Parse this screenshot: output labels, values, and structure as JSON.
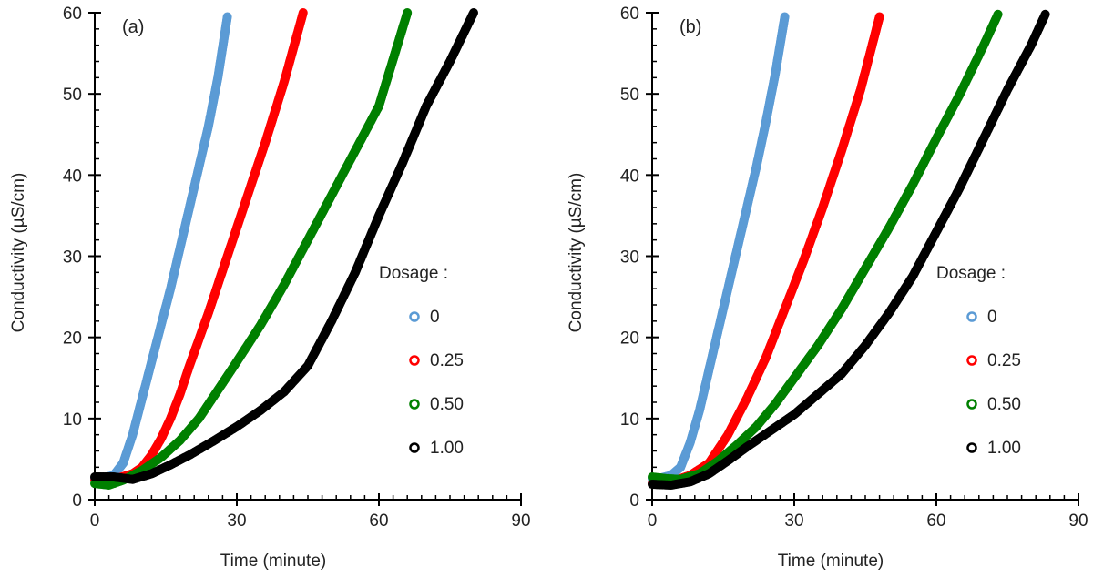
{
  "chart_data": [
    {
      "type": "scatter",
      "panel_label": "(a)",
      "xlabel": "Time (minute)",
      "ylabel": "Conductivity (µS/cm)",
      "xlim": [
        0,
        90
      ],
      "ylim": [
        0,
        60
      ],
      "xticks": [
        0,
        30,
        60,
        90
      ],
      "yticks": [
        0,
        10,
        20,
        30,
        40,
        50,
        60
      ],
      "grid": false,
      "legend": {
        "title": "Dosage :",
        "position": "right"
      },
      "series": [
        {
          "name": "0",
          "color": "#5b9bd5",
          "x": [
            0,
            2,
            4,
            6,
            8,
            10,
            12,
            14,
            16,
            18,
            20,
            22,
            24,
            26,
            28
          ],
          "y": [
            2.6,
            2.7,
            3.0,
            4.5,
            8.0,
            12.5,
            17.0,
            21.5,
            26.0,
            31.0,
            36.0,
            41.0,
            46.0,
            52.0,
            59.5
          ]
        },
        {
          "name": "0.25",
          "color": "#ff0000",
          "x": [
            0,
            4,
            8,
            10,
            12,
            14,
            16,
            18,
            20,
            24,
            28,
            32,
            36,
            40,
            44
          ],
          "y": [
            2.4,
            2.5,
            3.2,
            4.0,
            5.5,
            7.5,
            10.0,
            13.0,
            16.5,
            23.0,
            30.0,
            37.0,
            44.0,
            51.5,
            60.0
          ]
        },
        {
          "name": "0.50",
          "color": "#008000",
          "x": [
            0,
            3,
            6,
            10,
            14,
            18,
            22,
            26,
            30,
            35,
            40,
            45,
            50,
            55,
            60,
            66
          ],
          "y": [
            2.0,
            1.8,
            2.4,
            3.6,
            5.2,
            7.3,
            10.0,
            13.5,
            17.0,
            21.5,
            26.5,
            32.0,
            37.5,
            43.0,
            48.5,
            60.0
          ]
        },
        {
          "name": "1.00",
          "color": "#000000",
          "x": [
            0,
            4,
            8,
            12,
            16,
            20,
            25,
            30,
            35,
            40,
            45,
            50,
            55,
            60,
            65,
            70,
            75,
            80
          ],
          "y": [
            2.8,
            2.8,
            2.5,
            3.2,
            4.3,
            5.5,
            7.2,
            9.0,
            11.0,
            13.3,
            16.5,
            22.0,
            28.0,
            35.0,
            41.5,
            48.5,
            54.0,
            60.0
          ]
        }
      ]
    },
    {
      "type": "scatter",
      "panel_label": "(b)",
      "xlabel": "Time (minute)",
      "ylabel": "Conductivity (µS/cm)",
      "xlim": [
        0,
        90
      ],
      "ylim": [
        0,
        60
      ],
      "xticks": [
        0,
        30,
        60,
        90
      ],
      "yticks": [
        0,
        10,
        20,
        30,
        40,
        50,
        60
      ],
      "grid": false,
      "legend": {
        "title": "Dosage :",
        "position": "right"
      },
      "series": [
        {
          "name": "0",
          "color": "#5b9bd5",
          "x": [
            0,
            2,
            4,
            6,
            8,
            10,
            12,
            14,
            16,
            18,
            20,
            22,
            24,
            26,
            28
          ],
          "y": [
            2.6,
            2.7,
            3.0,
            4.0,
            7.0,
            11.0,
            16.0,
            21.0,
            26.0,
            31.0,
            36.0,
            41.0,
            46.5,
            52.5,
            59.5
          ]
        },
        {
          "name": "0.25",
          "color": "#ff0000",
          "x": [
            0,
            4,
            8,
            12,
            16,
            20,
            24,
            28,
            32,
            36,
            40,
            44,
            48
          ],
          "y": [
            2.0,
            2.2,
            3.0,
            4.5,
            8.0,
            12.5,
            17.5,
            23.5,
            29.5,
            36.0,
            43.0,
            50.5,
            59.5
          ]
        },
        {
          "name": "0.50",
          "color": "#008000",
          "x": [
            0,
            3,
            6,
            10,
            14,
            18,
            22,
            26,
            30,
            35,
            40,
            45,
            50,
            55,
            60,
            65,
            70,
            73
          ],
          "y": [
            2.8,
            2.6,
            2.5,
            3.2,
            4.8,
            6.8,
            9.0,
            11.8,
            15.0,
            19.0,
            23.5,
            28.5,
            33.5,
            38.8,
            44.5,
            50.0,
            56.0,
            59.8
          ]
        },
        {
          "name": "1.00",
          "color": "#000000",
          "x": [
            0,
            4,
            8,
            12,
            16,
            20,
            25,
            30,
            35,
            40,
            45,
            50,
            55,
            60,
            65,
            70,
            75,
            80,
            83
          ],
          "y": [
            1.9,
            1.8,
            2.2,
            3.2,
            4.8,
            6.5,
            8.5,
            10.5,
            13.0,
            15.5,
            19.0,
            23.0,
            27.5,
            33.0,
            38.5,
            44.5,
            50.5,
            56.0,
            59.8
          ]
        }
      ]
    }
  ]
}
